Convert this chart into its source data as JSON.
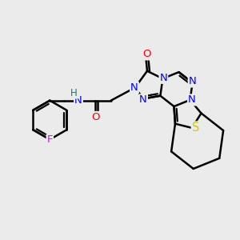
{
  "bg_color": "#ebebeb",
  "atom_colors": {
    "C": "#000000",
    "N": "#0000ff",
    "O": "#ff0000",
    "S": "#cccc00",
    "F": "#ee00ee",
    "H": "#008080"
  },
  "bond_color": "#000000",
  "bond_width": 1.8,
  "label_fontsize": 9.5,
  "label_fontsize_small": 8.5
}
